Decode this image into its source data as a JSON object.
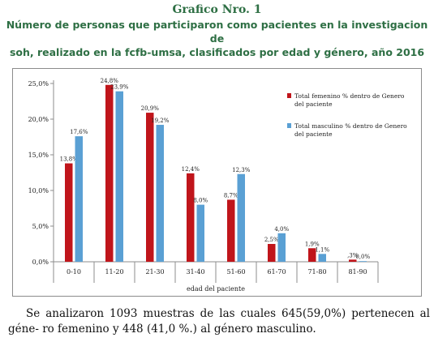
{
  "header": {
    "title": "Grafico Nro. 1",
    "subtitle_line1": "Número de personas que participaron como pacientes en la investigacion de",
    "subtitle_line2": "soh, realizado en la fcfb-umsa, clasificados por edad y género, año 2016"
  },
  "caption": {
    "line1": "Se analizaron 1093 muestras de las cuales 645(59,0%) pertenecen al géne-",
    "line2": "ro femenino y 448 (41,0 %.) al género masculino."
  },
  "colors": {
    "female": "#c0151b",
    "male": "#5aa0d4",
    "title": "#2e6f44"
  },
  "chart_data": {
    "type": "bar",
    "title": "",
    "xlabel": "edad del paciente",
    "ylabel": "",
    "ylim": [
      0,
      25
    ],
    "yticks": [
      "0,0%",
      "5,0%",
      "10,0%",
      "15,0%",
      "20,0%",
      "25,0%"
    ],
    "categories": [
      "0-10",
      "11-20",
      "21-30",
      "31-40",
      "51-60",
      "61-70",
      "71-80",
      "81-90"
    ],
    "legend_position": "right",
    "grid": false,
    "series": [
      {
        "name": "Total femenino % dentro de Genero del paciente",
        "values": [
          13.8,
          24.8,
          20.9,
          12.4,
          8.7,
          2.5,
          1.9,
          0.3
        ],
        "labels": [
          "13,8%",
          "24,8%",
          "20,9%",
          "12,4%",
          "8,7%",
          "2,5%",
          "1,9%",
          ",3%"
        ]
      },
      {
        "name": "Total masculino % dentro de Genero del paciente",
        "values": [
          17.6,
          23.9,
          19.2,
          8.0,
          12.3,
          4.0,
          1.1,
          0.0
        ],
        "labels": [
          "17,6%",
          "23,9%",
          "19,2%",
          "8,0%",
          "12,3%",
          "4,0%",
          "1,1%",
          "0,0%"
        ]
      }
    ]
  }
}
